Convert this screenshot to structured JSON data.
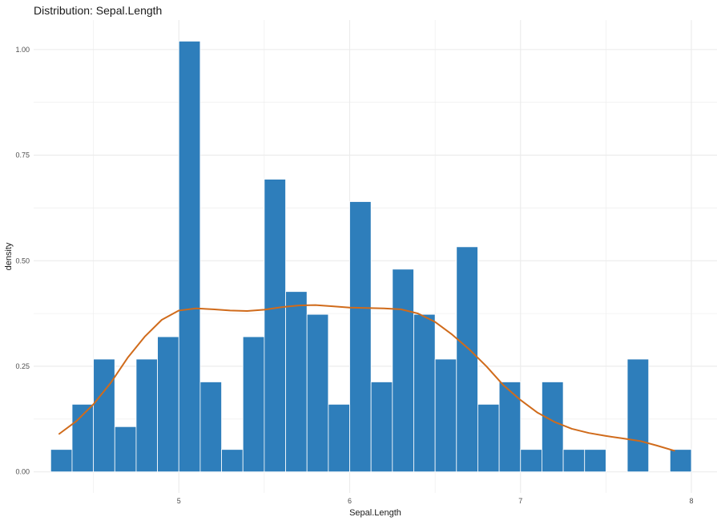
{
  "chart_data": {
    "type": "bar",
    "title": "Distribution: Sepal.Length",
    "xlabel": "Sepal.Length",
    "ylabel": "density",
    "xlim": [
      4.15,
      8.15
    ],
    "ylim": [
      -0.05,
      1.07
    ],
    "x_ticks": [
      5,
      6,
      7,
      8
    ],
    "x_tick_labels": [
      "5",
      "6",
      "7",
      "8"
    ],
    "y_ticks": [
      0,
      0.25,
      0.5,
      0.75,
      1.0
    ],
    "y_tick_labels": [
      "0.00",
      "0.25",
      "0.50",
      "0.75",
      "1.00"
    ],
    "grid": true,
    "bin_width": 0.125,
    "bins": [
      {
        "x": 4.3125,
        "density": 0.053
      },
      {
        "x": 4.4375,
        "density": 0.16
      },
      {
        "x": 4.5625,
        "density": 0.267
      },
      {
        "x": 4.6875,
        "density": 0.107
      },
      {
        "x": 4.8125,
        "density": 0.267
      },
      {
        "x": 4.9375,
        "density": 0.32
      },
      {
        "x": 5.0625,
        "density": 1.02
      },
      {
        "x": 5.1875,
        "density": 0.213
      },
      {
        "x": 5.3125,
        "density": 0.053
      },
      {
        "x": 5.4375,
        "density": 0.32
      },
      {
        "x": 5.5625,
        "density": 0.693
      },
      {
        "x": 5.6875,
        "density": 0.427
      },
      {
        "x": 5.8125,
        "density": 0.373
      },
      {
        "x": 5.9375,
        "density": 0.16
      },
      {
        "x": 6.0625,
        "density": 0.64
      },
      {
        "x": 6.1875,
        "density": 0.213
      },
      {
        "x": 6.3125,
        "density": 0.48
      },
      {
        "x": 6.4375,
        "density": 0.373
      },
      {
        "x": 6.5625,
        "density": 0.267
      },
      {
        "x": 6.6875,
        "density": 0.533
      },
      {
        "x": 6.8125,
        "density": 0.16
      },
      {
        "x": 6.9375,
        "density": 0.213
      },
      {
        "x": 7.0625,
        "density": 0.053
      },
      {
        "x": 7.1875,
        "density": 0.213
      },
      {
        "x": 7.3125,
        "density": 0.053
      },
      {
        "x": 7.4375,
        "density": 0.053
      },
      {
        "x": 7.5625,
        "density": 0.0
      },
      {
        "x": 7.6875,
        "density": 0.267
      },
      {
        "x": 7.8125,
        "density": 0.0
      },
      {
        "x": 7.9375,
        "density": 0.053
      }
    ],
    "density_curve": {
      "x": [
        4.3,
        4.4,
        4.5,
        4.6,
        4.7,
        4.8,
        4.9,
        5.0,
        5.1,
        5.2,
        5.3,
        5.4,
        5.5,
        5.6,
        5.7,
        5.8,
        5.9,
        6.0,
        6.1,
        6.2,
        6.3,
        6.4,
        6.5,
        6.6,
        6.7,
        6.8,
        6.9,
        7.0,
        7.1,
        7.2,
        7.3,
        7.4,
        7.5,
        7.6,
        7.7,
        7.8,
        7.9
      ],
      "y": [
        0.09,
        0.12,
        0.16,
        0.21,
        0.27,
        0.32,
        0.36,
        0.382,
        0.387,
        0.385,
        0.382,
        0.381,
        0.384,
        0.39,
        0.394,
        0.395,
        0.392,
        0.389,
        0.388,
        0.387,
        0.385,
        0.375,
        0.355,
        0.325,
        0.29,
        0.25,
        0.205,
        0.17,
        0.14,
        0.118,
        0.102,
        0.092,
        0.085,
        0.079,
        0.073,
        0.062,
        0.05
      ]
    },
    "bar_color": "#2E7EBB",
    "curve_color": "#D06B1B",
    "grid_color": "#EBEBEB"
  }
}
